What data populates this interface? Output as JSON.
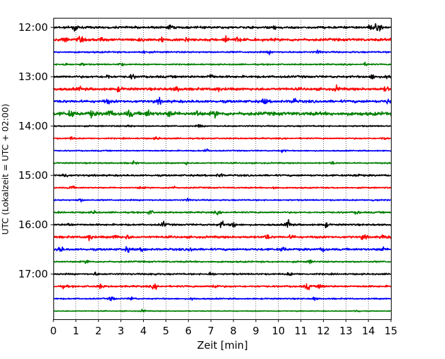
{
  "chart_data": {
    "type": "line",
    "title": "",
    "xlabel": "Zeit  [min]",
    "ylabel": "UTC (Lokalzeit = UTC + 02:00)",
    "xlim": [
      0,
      15
    ],
    "x_ticks": [
      0,
      1,
      2,
      3,
      4,
      5,
      6,
      7,
      8,
      9,
      10,
      11,
      12,
      13,
      14,
      15
    ],
    "x_tick_labels": [
      "0",
      "1",
      "2",
      "3",
      "4",
      "5",
      "6",
      "7",
      "8",
      "9",
      "10",
      "11",
      "12",
      "13",
      "14",
      "15"
    ],
    "y_tick_labels": [
      "12:00",
      "13:00",
      "14:00",
      "15:00",
      "16:00",
      "17:00"
    ],
    "y_tick_rows": [
      0,
      4,
      8,
      12,
      16,
      20
    ],
    "row_interval_minutes": 15,
    "grid": {
      "x": true,
      "y": false,
      "style": "dotted"
    },
    "series_colors": [
      "#000000",
      "#ff0000",
      "#0000ff",
      "#008000"
    ],
    "rows": [
      {
        "start": "12:00",
        "color": "#000000",
        "amp": 2.5,
        "events": [
          [
            0.95,
            9
          ],
          [
            14.1,
            5
          ],
          [
            14.3,
            5
          ],
          [
            14.5,
            5
          ],
          [
            5.2,
            4
          ],
          [
            9.8,
            4
          ]
        ]
      },
      {
        "start": "12:15",
        "color": "#ff0000",
        "amp": 3,
        "events": [
          [
            0.5,
            5
          ],
          [
            1.2,
            5
          ],
          [
            2.1,
            4
          ],
          [
            3.9,
            4
          ],
          [
            4.8,
            4
          ],
          [
            5.9,
            5
          ],
          [
            7.65,
            9
          ],
          [
            8.2,
            4
          ]
        ]
      },
      {
        "start": "12:30",
        "color": "#0000ff",
        "amp": 1.8,
        "events": [
          [
            4.0,
            3
          ],
          [
            9.6,
            3
          ],
          [
            11.8,
            4
          ]
        ]
      },
      {
        "start": "12:45",
        "color": "#008000",
        "amp": 1.5,
        "events": [
          [
            0.5,
            3
          ],
          [
            1.3,
            3
          ],
          [
            3.0,
            3
          ],
          [
            13.9,
            3
          ]
        ]
      },
      {
        "start": "13:00",
        "color": "#000000",
        "amp": 2.5,
        "events": [
          [
            2.4,
            4
          ],
          [
            3.5,
            4
          ],
          [
            7.0,
            5
          ],
          [
            14.2,
            5
          ],
          [
            14.9,
            5
          ]
        ]
      },
      {
        "start": "13:15",
        "color": "#ff0000",
        "amp": 3,
        "events": [
          [
            1.2,
            4
          ],
          [
            2.9,
            4
          ],
          [
            5.5,
            5
          ],
          [
            7.3,
            4
          ],
          [
            12.6,
            5
          ],
          [
            14.8,
            4
          ]
        ]
      },
      {
        "start": "13:30",
        "color": "#0000ff",
        "amp": 3,
        "events": [
          [
            2.4,
            4
          ],
          [
            4.7,
            5
          ],
          [
            9.4,
            5
          ],
          [
            10.7,
            5
          ],
          [
            14.9,
            5
          ]
        ]
      },
      {
        "start": "13:45",
        "color": "#008000",
        "amp": 4,
        "events": [
          [
            0.8,
            6
          ],
          [
            1.7,
            5
          ],
          [
            2.5,
            6
          ],
          [
            3.4,
            6
          ],
          [
            4.2,
            6
          ],
          [
            5.2,
            6
          ],
          [
            6.4,
            5
          ],
          [
            7.2,
            5
          ]
        ]
      },
      {
        "start": "14:00",
        "color": "#000000",
        "amp": 1.5,
        "events": [
          [
            3.4,
            3
          ],
          [
            6.5,
            3
          ]
        ]
      },
      {
        "start": "14:15",
        "color": "#ff0000",
        "amp": 1.5,
        "events": [
          [
            0.8,
            3
          ],
          [
            4.6,
            3
          ],
          [
            14.7,
            3
          ]
        ]
      },
      {
        "start": "14:30",
        "color": "#0000ff",
        "amp": 1.3,
        "events": [
          [
            6.8,
            3
          ],
          [
            10.2,
            3
          ]
        ]
      },
      {
        "start": "14:45",
        "color": "#008000",
        "amp": 1.5,
        "events": [
          [
            3.6,
            3
          ],
          [
            5.9,
            3
          ],
          [
            12.4,
            3
          ]
        ]
      },
      {
        "start": "15:00",
        "color": "#000000",
        "amp": 2,
        "events": [
          [
            0.5,
            5
          ],
          [
            7.4,
            4
          ],
          [
            13.5,
            3
          ]
        ]
      },
      {
        "start": "15:15",
        "color": "#ff0000",
        "amp": 1.5,
        "events": [
          [
            0.8,
            4
          ],
          [
            3.9,
            3
          ],
          [
            5.3,
            3
          ],
          [
            9.8,
            3
          ]
        ]
      },
      {
        "start": "15:30",
        "color": "#0000ff",
        "amp": 1.5,
        "events": [
          [
            1.2,
            3
          ],
          [
            6.0,
            3
          ],
          [
            14.3,
            3
          ]
        ]
      },
      {
        "start": "15:45",
        "color": "#008000",
        "amp": 1.8,
        "events": [
          [
            1.8,
            3
          ],
          [
            4.3,
            4
          ],
          [
            7.3,
            3
          ],
          [
            13.5,
            3
          ]
        ]
      },
      {
        "start": "16:00",
        "color": "#000000",
        "amp": 2,
        "events": [
          [
            0.7,
            3
          ],
          [
            4.9,
            6
          ],
          [
            7.5,
            7
          ],
          [
            8.0,
            6
          ],
          [
            10.45,
            10
          ],
          [
            12.1,
            5
          ]
        ]
      },
      {
        "start": "16:15",
        "color": "#ff0000",
        "amp": 2.5,
        "events": [
          [
            1.6,
            6
          ],
          [
            2.8,
            5
          ],
          [
            3.3,
            4
          ],
          [
            9.5,
            5
          ],
          [
            10.6,
            4
          ],
          [
            13.8,
            5
          ],
          [
            14.7,
            4
          ]
        ]
      },
      {
        "start": "16:30",
        "color": "#0000ff",
        "amp": 2.5,
        "events": [
          [
            0.3,
            6
          ],
          [
            3.3,
            5
          ],
          [
            4.0,
            4
          ],
          [
            6.1,
            4
          ],
          [
            10.2,
            4
          ],
          [
            12.0,
            4
          ],
          [
            14.6,
            4
          ]
        ]
      },
      {
        "start": "16:45",
        "color": "#008000",
        "amp": 1.8,
        "events": [
          [
            1.5,
            3
          ],
          [
            11.4,
            3
          ]
        ]
      },
      {
        "start": "17:00",
        "color": "#000000",
        "amp": 1.8,
        "events": [
          [
            1.9,
            3
          ],
          [
            4.4,
            3
          ],
          [
            7.0,
            4
          ],
          [
            10.5,
            3
          ]
        ]
      },
      {
        "start": "17:15",
        "color": "#ff0000",
        "amp": 2,
        "events": [
          [
            0.5,
            3
          ],
          [
            2.1,
            4
          ],
          [
            4.5,
            5
          ],
          [
            7.2,
            5
          ],
          [
            11.3,
            7
          ],
          [
            11.9,
            5
          ]
        ]
      },
      {
        "start": "17:30",
        "color": "#0000ff",
        "amp": 1.5,
        "events": [
          [
            2.6,
            5
          ],
          [
            3.5,
            4
          ],
          [
            6.2,
            3
          ],
          [
            11.6,
            3
          ]
        ]
      },
      {
        "start": "17:45",
        "color": "#008000",
        "amp": 1,
        "events": [
          [
            4.0,
            3
          ],
          [
            13.5,
            3
          ]
        ]
      }
    ]
  }
}
